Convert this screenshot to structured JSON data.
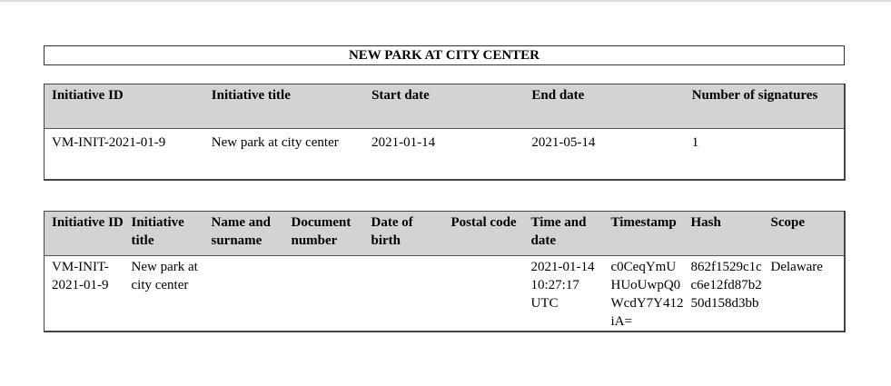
{
  "title": "NEW PARK AT CITY CENTER",
  "summary": {
    "headers": [
      "Initiative ID",
      "Initiative title",
      "Start date",
      "End date",
      "Number of signatures"
    ],
    "row": [
      "VM-INIT-2021-01-9",
      "New park at city center",
      "2021-01-14",
      "2021-05-14",
      "1"
    ]
  },
  "signatures": {
    "headers": [
      "Initiative ID",
      "Initiative title",
      "Name and surname",
      "Document number",
      "Date of birth",
      "Postal code",
      "Time and date",
      "Timestamp",
      "Hash",
      "Scope"
    ],
    "row": [
      "VM-INIT-2021-01-9",
      "New park at city center",
      "",
      "",
      "",
      "",
      "2021-01-14 10:27:17 UTC",
      "c0CeqYmUHUoUwpQ0WcdY7Y412iA=",
      "862f1529c1cc6e12fd87b250d158d3bb",
      "Delaware"
    ]
  }
}
